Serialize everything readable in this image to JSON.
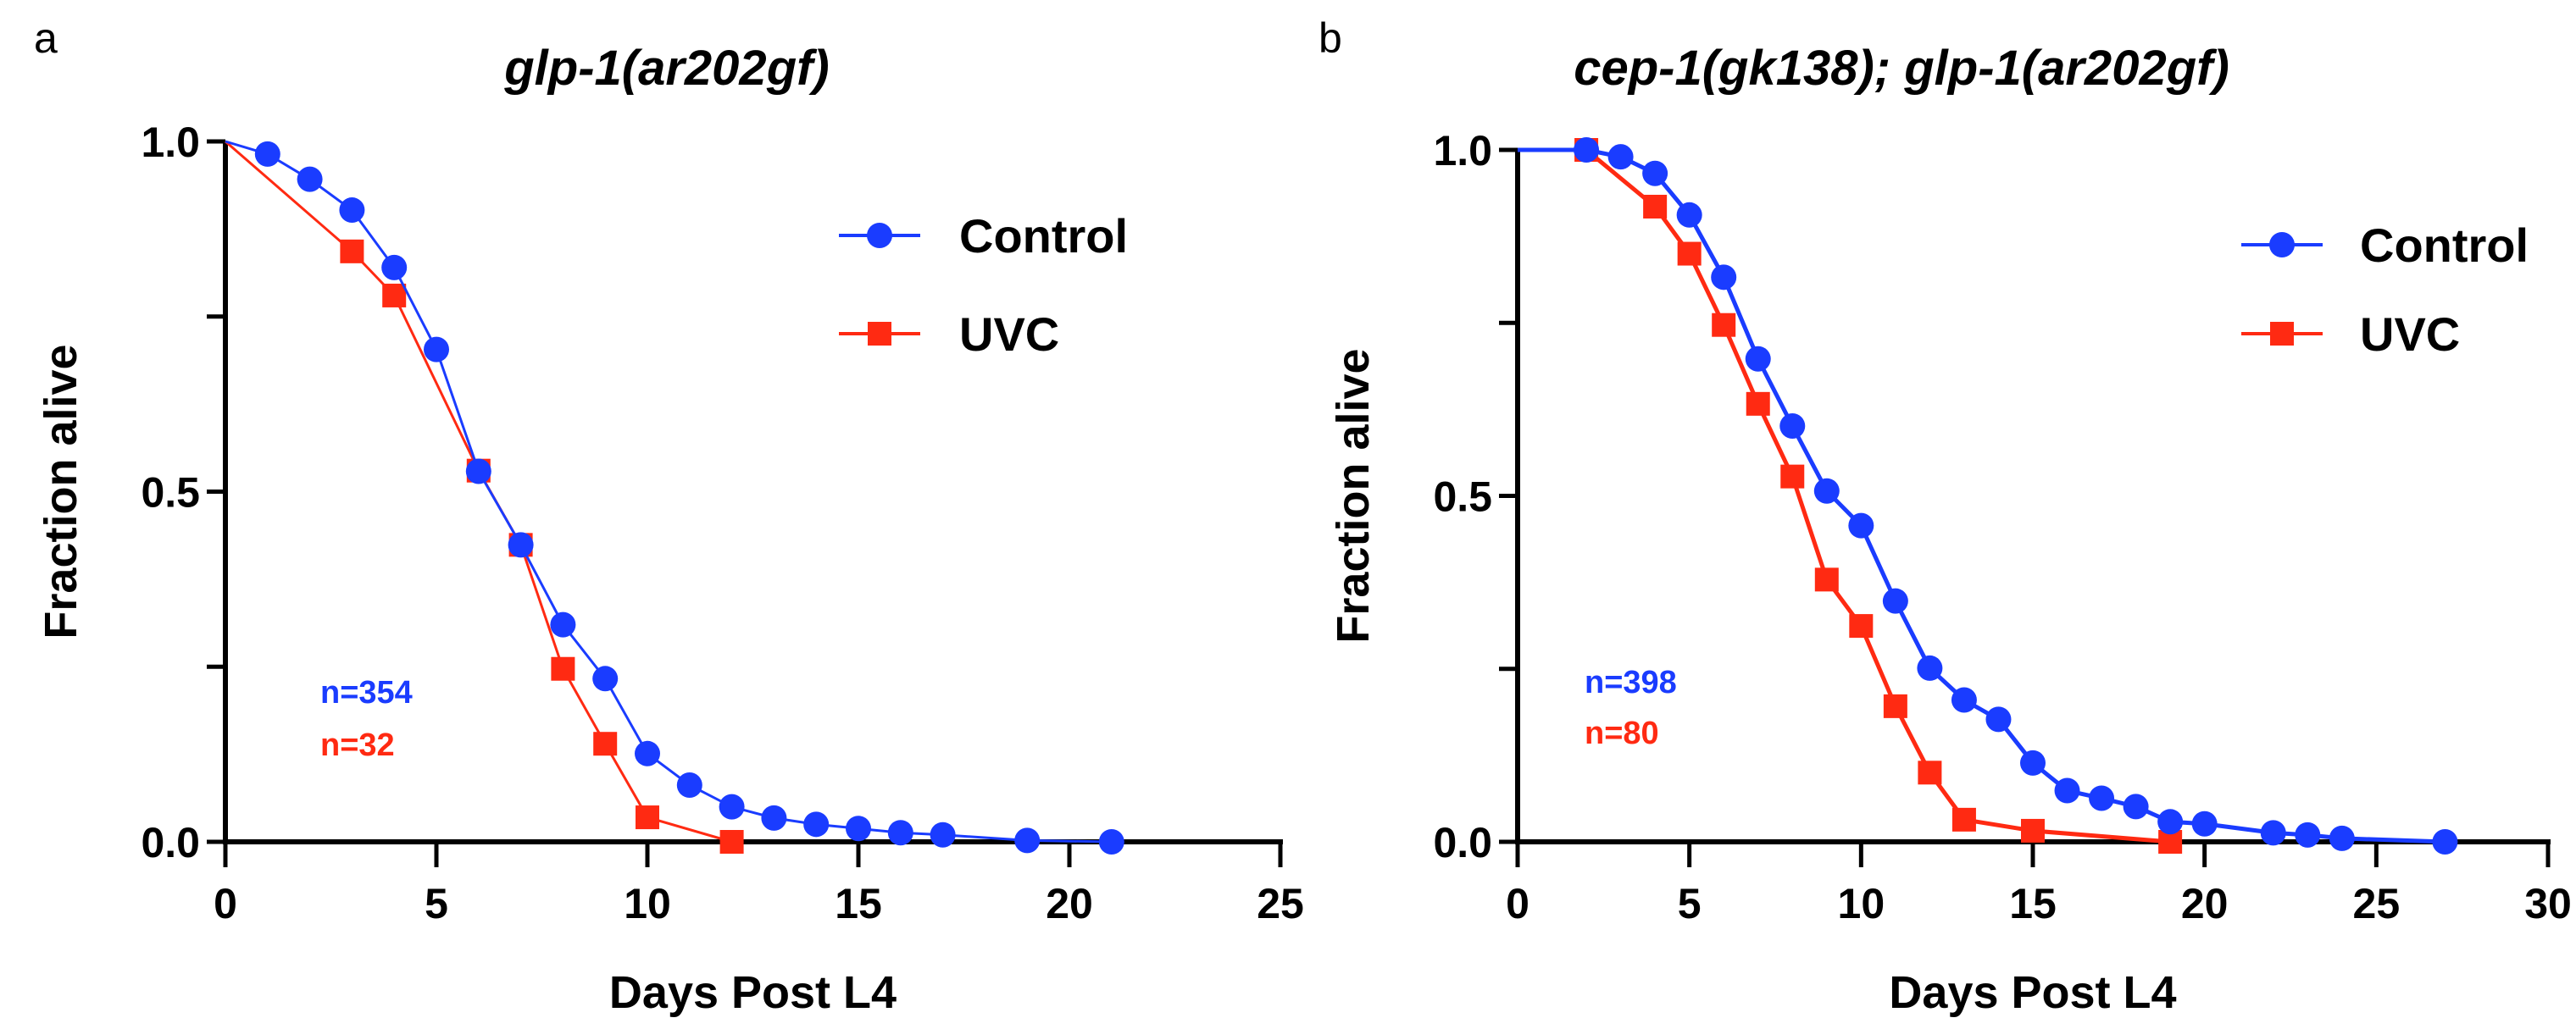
{
  "colors": {
    "control": "#1a3cff",
    "uvc": "#ff2a12",
    "axis": "#000000"
  },
  "chart_data": [
    {
      "type": "line",
      "panel": "a",
      "title": "glp-1(ar202gf)",
      "xlabel": "Days Post L4",
      "ylabel": "Fraction alive",
      "xlim": [
        0,
        25
      ],
      "ylim": [
        0,
        1
      ],
      "xticks": [
        "0",
        "5",
        "10",
        "15",
        "20",
        "25"
      ],
      "yticks": [
        "0.0",
        "0.5",
        "1.0"
      ],
      "legend_position": "top-right",
      "series": [
        {
          "name": "Control",
          "marker": "circle",
          "n_label": "n=354",
          "x": [
            0,
            1,
            2,
            3,
            4,
            5,
            6,
            7,
            8,
            9,
            10,
            11,
            12,
            13,
            14,
            15,
            16,
            17,
            19,
            21
          ],
          "y": [
            1.0,
            0.982,
            0.946,
            0.902,
            0.82,
            0.703,
            0.529,
            0.424,
            0.31,
            0.233,
            0.126,
            0.081,
            0.05,
            0.034,
            0.025,
            0.019,
            0.013,
            0.01,
            0.002,
            0.0
          ]
        },
        {
          "name": "UVC",
          "marker": "square",
          "n_label": "n=32",
          "x": [
            0,
            3,
            4,
            6,
            7,
            8,
            9,
            10,
            12
          ],
          "y": [
            1.0,
            0.843,
            0.78,
            0.53,
            0.424,
            0.247,
            0.14,
            0.035,
            0.0
          ]
        }
      ]
    },
    {
      "type": "line",
      "panel": "b",
      "title": "cep-1(gk138); glp-1(ar202gf)",
      "xlabel": "Days Post L4",
      "ylabel": "Fraction alive",
      "xlim": [
        0,
        30
      ],
      "ylim": [
        0,
        1
      ],
      "xticks": [
        "0",
        "5",
        "10",
        "15",
        "20",
        "25",
        "30"
      ],
      "yticks": [
        "0.0",
        "0.5",
        "1.0"
      ],
      "legend_position": "top-right",
      "series": [
        {
          "name": "Control",
          "marker": "circle",
          "n_label": "n=398",
          "x": [
            0,
            2,
            3,
            4,
            5,
            6,
            7,
            8,
            9,
            10,
            11,
            12,
            13,
            14,
            15,
            16,
            17,
            18,
            19,
            20,
            22,
            23,
            24,
            27
          ],
          "y": [
            1.0,
            1.0,
            0.99,
            0.966,
            0.906,
            0.816,
            0.698,
            0.601,
            0.507,
            0.457,
            0.348,
            0.251,
            0.205,
            0.177,
            0.114,
            0.074,
            0.063,
            0.051,
            0.029,
            0.026,
            0.013,
            0.01,
            0.005,
            0.0
          ]
        },
        {
          "name": "UVC",
          "marker": "square",
          "n_label": "n=80",
          "x": [
            2,
            4,
            5,
            6,
            7,
            8,
            9,
            10,
            11,
            12,
            13,
            15,
            19
          ],
          "y": [
            1.0,
            0.918,
            0.85,
            0.747,
            0.633,
            0.528,
            0.379,
            0.312,
            0.196,
            0.1,
            0.032,
            0.016,
            0.0
          ]
        }
      ]
    }
  ]
}
